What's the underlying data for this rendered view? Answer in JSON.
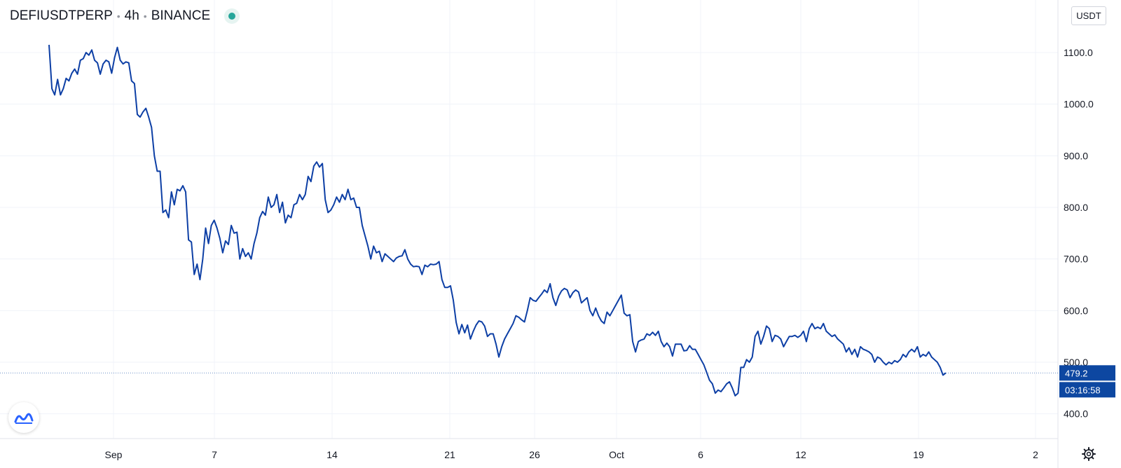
{
  "header": {
    "symbol": "DEFIUSDTPERP",
    "interval": "4h",
    "exchange": "BINANCE"
  },
  "currency_label": "USDT",
  "last_price": {
    "value": "479.2",
    "countdown": "03:16:58"
  },
  "colors": {
    "line": "#0d3fa5",
    "price_label_bg": "#0d47a1",
    "grid": "#f0f3fa",
    "live_dot": "#26a69a"
  },
  "icons": {
    "logo": "tradingview-logo-icon",
    "settings": "gear-icon",
    "live": "live-status-dot-icon"
  },
  "chart_data": {
    "type": "line",
    "title": "DEFIUSDTPERP · 4h · BINANCE",
    "ylabel": "USDT",
    "xlabel": "",
    "ylim": [
      370,
      1170
    ],
    "y_ticks": [
      "400.0",
      "500.0",
      "600.0",
      "700.0",
      "800.0",
      "900.0",
      "1000.0",
      "1100.0"
    ],
    "x_ticks": [
      "Sep",
      "7",
      "14",
      "21",
      "26",
      "Oct",
      "6",
      "12",
      "19",
      "2"
    ],
    "grid": true,
    "series": [
      {
        "values": [
          1115,
          1030,
          1018,
          1048,
          1018,
          1030,
          1050,
          1045,
          1060,
          1068,
          1058,
          1085,
          1088,
          1100,
          1095,
          1105,
          1085,
          1080,
          1058,
          1078,
          1085,
          1082,
          1060,
          1090,
          1110,
          1085,
          1078,
          1082,
          1080,
          1045,
          1040,
          980,
          975,
          985,
          992,
          975,
          955,
          900,
          870,
          870,
          790,
          795,
          780,
          830,
          805,
          835,
          832,
          842,
          830,
          737,
          733,
          670,
          690,
          660,
          700,
          760,
          730,
          765,
          775,
          760,
          740,
          712,
          735,
          728,
          765,
          750,
          752,
          700,
          720,
          705,
          712,
          700,
          730,
          750,
          780,
          792,
          785,
          820,
          800,
          805,
          825,
          790,
          810,
          770,
          785,
          780,
          805,
          808,
          825,
          815,
          825,
          860,
          850,
          880,
          888,
          878,
          885,
          815,
          790,
          795,
          805,
          820,
          810,
          825,
          815,
          835,
          815,
          818,
          800,
          800,
          765,
          745,
          725,
          700,
          725,
          712,
          715,
          695,
          710,
          705,
          700,
          695,
          702,
          705,
          706,
          718,
          700,
          690,
          685,
          686,
          685,
          670,
          688,
          685,
          690,
          689,
          690,
          695,
          660,
          645,
          645,
          648,
          620,
          577,
          555,
          573,
          557,
          572,
          545,
          560,
          572,
          580,
          578,
          570,
          550,
          555,
          555,
          535,
          510,
          530,
          545,
          555,
          565,
          575,
          590,
          587,
          582,
          578,
          600,
          625,
          620,
          618,
          625,
          632,
          640,
          635,
          652,
          625,
          610,
          628,
          638,
          643,
          640,
          625,
          635,
          640,
          636,
          615,
          620,
          625,
          600,
          590,
          605,
          590,
          580,
          575,
          597,
          590,
          600,
          610,
          620,
          630,
          595,
          590,
          592,
          540,
          520,
          540,
          543,
          545,
          555,
          552,
          558,
          552,
          560,
          540,
          530,
          537,
          530,
          512,
          535,
          535,
          535,
          522,
          523,
          532,
          525,
          525,
          515,
          505,
          495,
          480,
          465,
          458,
          440,
          446,
          443,
          450,
          458,
          462,
          450,
          435,
          440,
          490,
          490,
          505,
          500,
          510,
          550,
          560,
          535,
          550,
          570,
          565,
          540,
          552,
          550,
          545,
          530,
          540,
          550,
          550,
          552,
          548,
          552,
          560,
          540,
          565,
          575,
          565,
          568,
          565,
          575,
          560,
          555,
          550,
          553,
          545,
          540,
          535,
          520,
          528,
          515,
          525,
          510,
          530,
          525,
          523,
          520,
          515,
          500,
          510,
          507,
          500,
          495,
          500,
          497,
          503,
          500,
          505,
          515,
          510,
          520,
          525,
          520,
          530,
          510,
          515,
          512,
          520,
          510,
          505,
          500,
          490,
          475,
          479.2
        ]
      }
    ]
  }
}
